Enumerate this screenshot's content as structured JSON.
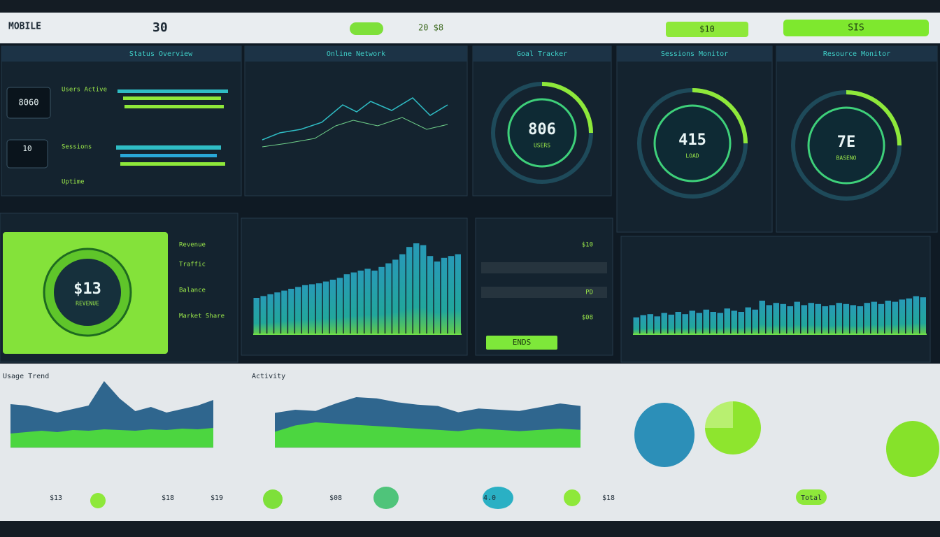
{
  "header": {
    "logo": "MOBILE",
    "title": "30",
    "status": "20 $8",
    "action": "$10",
    "button": "SIS"
  },
  "panels": {
    "titles": [
      "Status Overview",
      "Online Network",
      "Goal Tracker",
      "Sessions Monitor",
      "Resource Monitor"
    ],
    "rows": [
      "Users Active",
      "Sessions",
      "Uptime"
    ],
    "stats": [
      "8060",
      "10"
    ],
    "middle": [
      "Revenue",
      "Traffic",
      "Balance",
      "Market Share"
    ],
    "items": [
      "$10",
      "PD",
      "$08",
      "ENDS"
    ]
  },
  "gauges": [
    {
      "value": "806",
      "label": "USERS"
    },
    {
      "value": "415",
      "label": "LOAD"
    },
    {
      "value": "7E",
      "label": "BASENO"
    }
  ],
  "big_gauge": {
    "value": "$13",
    "label": "REVENUE"
  },
  "bar_charts": [
    {
      "values": [
        40,
        42,
        44,
        46,
        48,
        50,
        52,
        54,
        55,
        56,
        58,
        60,
        62,
        66,
        68,
        70,
        72,
        70,
        74,
        78,
        82,
        88,
        96,
        100,
        98,
        86,
        80,
        84,
        86,
        88
      ]
    },
    {
      "values": [
        30,
        34,
        36,
        32,
        38,
        35,
        40,
        36,
        42,
        38,
        44,
        40,
        38,
        46,
        42,
        40,
        48,
        44,
        60,
        52,
        56,
        54,
        50,
        58,
        52,
        56,
        54,
        50,
        52,
        56,
        54,
        52,
        50,
        56,
        58,
        54,
        60,
        58,
        62,
        64,
        68,
        66
      ]
    }
  ],
  "area_charts": [
    {
      "title": "Usage Trend",
      "series": [
        {
          "color": "#1f5a86",
          "values": [
            62,
            60,
            55,
            50,
            55,
            60,
            95,
            70,
            52,
            58,
            50,
            55,
            60,
            68
          ]
        },
        {
          "color": "#4fe03a",
          "values": [
            20,
            22,
            24,
            22,
            25,
            24,
            26,
            25,
            24,
            26,
            25,
            27,
            26,
            28
          ]
        }
      ]
    },
    {
      "title": "Activity",
      "series": [
        {
          "color": "#1f5a86",
          "values": [
            55,
            60,
            58,
            70,
            80,
            78,
            72,
            68,
            66,
            56,
            62,
            60,
            58,
            64,
            70,
            66
          ]
        },
        {
          "color": "#4fe03a",
          "values": [
            25,
            35,
            40,
            38,
            36,
            34,
            32,
            30,
            28,
            26,
            30,
            28,
            26,
            28,
            30,
            28
          ]
        }
      ]
    }
  ],
  "footer": {
    "labels": [
      "$13",
      "$18",
      "$19",
      "$08",
      "4.0",
      "$18",
      "Total"
    ]
  }
}
